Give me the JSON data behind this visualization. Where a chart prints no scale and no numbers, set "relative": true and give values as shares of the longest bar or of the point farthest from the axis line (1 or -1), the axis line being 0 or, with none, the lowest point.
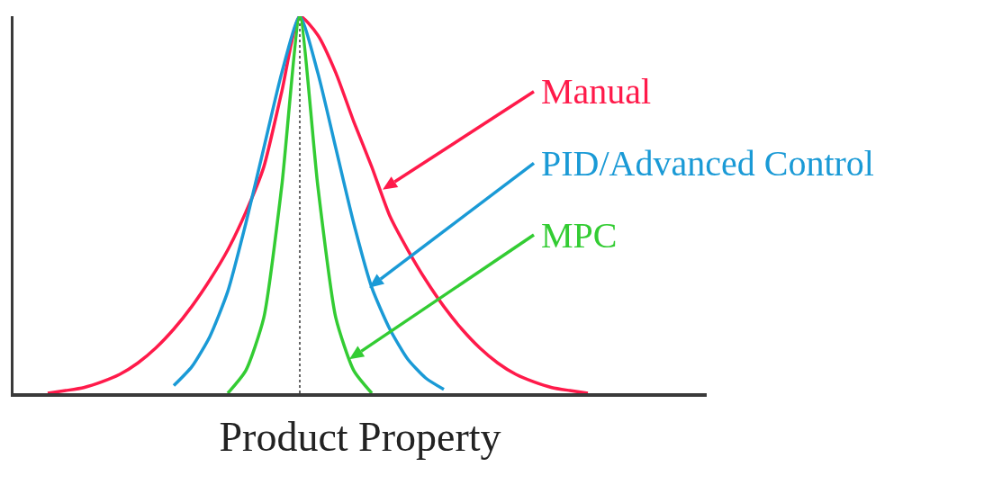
{
  "chart_data": {
    "type": "line",
    "relative": true,
    "xlabel": "Product Property",
    "categories": [
      null,
      null,
      null,
      null,
      null,
      null,
      null,
      null,
      null,
      null,
      null,
      null,
      null,
      null,
      null,
      null,
      null,
      null,
      null,
      null,
      null,
      null,
      null,
      null,
      null,
      null,
      null,
      null,
      null,
      null,
      null,
      null,
      null,
      null,
      null,
      null,
      null,
      null
    ],
    "series": [
      {
        "name": "Manual",
        "color": "#ff1a4a",
        "values": [
          null,
          0,
          0.007,
          0.015,
          0.03,
          0.05,
          0.08,
          0.12,
          0.17,
          0.23,
          0.3,
          0.38,
          0.48,
          0.6,
          0.8,
          1,
          0.95,
          0.85,
          0.72,
          0.6,
          0.47,
          0.38,
          0.3,
          0.23,
          0.17,
          0.12,
          0.08,
          0.05,
          0.03,
          0.015,
          0.007,
          0,
          null,
          null,
          null,
          null,
          null,
          null
        ]
      },
      {
        "name": "PID/Advanced Control",
        "color": "#1a9ad6",
        "values": [
          null,
          null,
          null,
          null,
          null,
          null,
          null,
          null,
          0.02,
          0.07,
          0.15,
          0.27,
          0.45,
          0.65,
          0.85,
          1,
          0.85,
          0.65,
          0.45,
          0.28,
          0.17,
          0.09,
          0.04,
          0.01,
          null,
          null,
          null,
          null,
          null,
          null,
          null,
          null,
          null,
          null,
          null,
          null,
          null,
          null
        ]
      },
      {
        "name": "MPC",
        "color": "#33cc33",
        "values": [
          null,
          null,
          null,
          null,
          null,
          null,
          null,
          null,
          null,
          null,
          null,
          0,
          0.06,
          0.2,
          0.55,
          1,
          0.55,
          0.2,
          0.06,
          0,
          null,
          null,
          null,
          null,
          null,
          null,
          null,
          null,
          null,
          null,
          null,
          null,
          null,
          null,
          null,
          null,
          null,
          null
        ]
      }
    ],
    "legend": false,
    "grid": false,
    "marker": "none",
    "line_style": "solid"
  }
}
